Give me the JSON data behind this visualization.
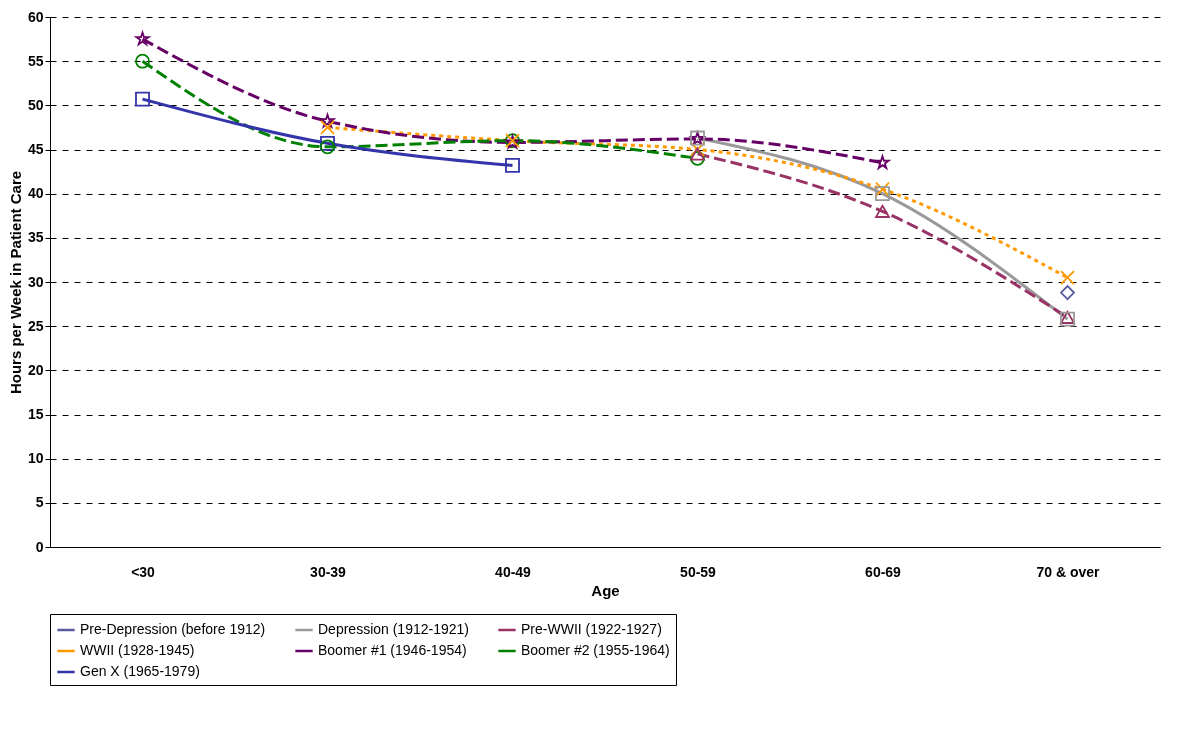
{
  "chart_data": {
    "type": "line",
    "xlabel": "Age",
    "ylabel": "Hours per Week in Patient Care",
    "categories": [
      "<30",
      "30-39",
      "40-49",
      "50-59",
      "60-69",
      "70 & over"
    ],
    "series": [
      {
        "name": "Pre-Depression (before 1912)",
        "color": "#5a5aa0",
        "marker": "diamond",
        "line_style": "solid",
        "values": [
          null,
          null,
          null,
          null,
          null,
          28.8
        ]
      },
      {
        "name": "Depression (1912-1921)",
        "color": "#999999",
        "marker": "square",
        "line_style": "solid",
        "values": [
          null,
          null,
          null,
          46.3,
          40,
          25.8
        ]
      },
      {
        "name": "Pre-WWII (1922-1927)",
        "color": "#993366",
        "marker": "triangle",
        "line_style": "dashed",
        "values": [
          null,
          null,
          null,
          44.5,
          38,
          26
        ]
      },
      {
        "name": "WWII (1928-1945)",
        "color": "#ff9900",
        "marker": "cross",
        "line_style": "dotted",
        "values": [
          null,
          47.5,
          46,
          45,
          40.5,
          30.5
        ]
      },
      {
        "name": "Boomer #1 (1946-1954)",
        "color": "#660066",
        "marker": "star",
        "line_style": "dashed",
        "values": [
          57.5,
          48.2,
          45.8,
          46.2,
          43.5,
          null
        ]
      },
      {
        "name": "Boomer #2 (1955-1964)",
        "color": "#008000",
        "marker": "circle",
        "line_style": "dashed",
        "values": [
          55,
          45.3,
          46,
          44,
          null,
          null
        ]
      },
      {
        "name": "Gen X (1965-1979)",
        "color": "#3333aa",
        "marker": "square",
        "line_style": "solid",
        "values": [
          50.7,
          45.7,
          43.2,
          null,
          null,
          null
        ]
      }
    ],
    "ylim": [
      0,
      60
    ],
    "yticks": [
      0,
      5,
      10,
      15,
      20,
      25,
      30,
      35,
      40,
      45,
      50,
      55,
      60
    ],
    "grid": "y",
    "legend": "bottom left"
  }
}
